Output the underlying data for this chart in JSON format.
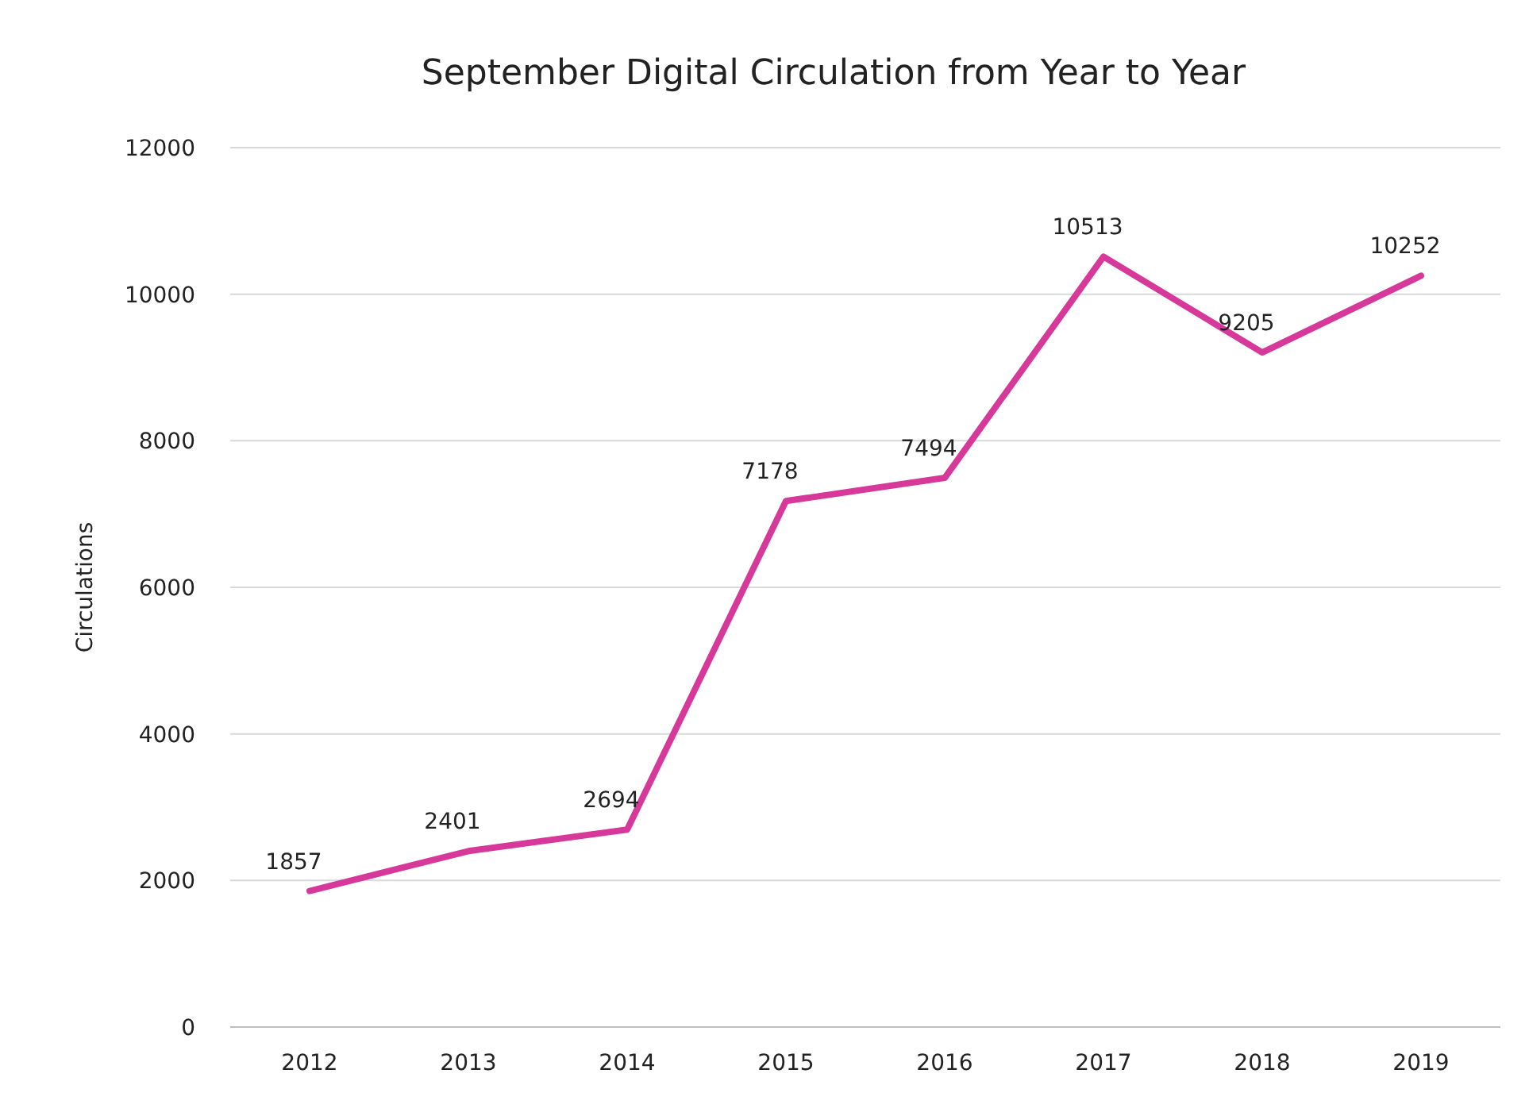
{
  "chart_data": {
    "type": "line",
    "title": "September Digital Circulation from Year to Year",
    "ylabel": "Circulations",
    "categories": [
      "2012",
      "2013",
      "2014",
      "2015",
      "2016",
      "2017",
      "2018",
      "2019"
    ],
    "series": [
      {
        "color": "#d6399a",
        "values": [
          1857,
          2401,
          2694,
          7178,
          7494,
          10513,
          9205,
          10252
        ]
      }
    ],
    "ylim": [
      0,
      12000
    ],
    "yticks": [
      0,
      2000,
      4000,
      6000,
      8000,
      10000,
      12000
    ],
    "grid": "y",
    "marker": "none",
    "line_style": "solid",
    "data_labels": true
  }
}
